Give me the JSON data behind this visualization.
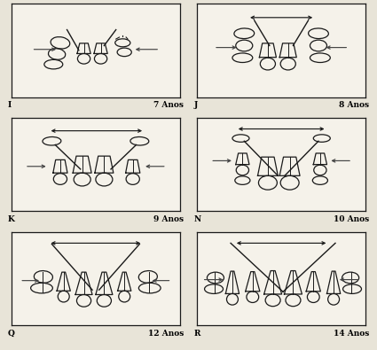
{
  "bg_color": "#e8e4d8",
  "line_color": "#1a1a1a",
  "box_color": "#f5f2ea",
  "text_color": "#000000",
  "panels": [
    {
      "label": "I",
      "age": "7 Anos",
      "row": 0,
      "col": 0
    },
    {
      "label": "J",
      "age": "8 Anos",
      "row": 0,
      "col": 1
    },
    {
      "label": "K",
      "age": "9 Anos",
      "row": 1,
      "col": 0
    },
    {
      "label": "N",
      "age": "10 Anos",
      "row": 1,
      "col": 1
    },
    {
      "label": "Q",
      "age": "12 Anos",
      "row": 2,
      "col": 0
    },
    {
      "label": "R",
      "age": "14 Anos",
      "row": 2,
      "col": 1
    }
  ]
}
